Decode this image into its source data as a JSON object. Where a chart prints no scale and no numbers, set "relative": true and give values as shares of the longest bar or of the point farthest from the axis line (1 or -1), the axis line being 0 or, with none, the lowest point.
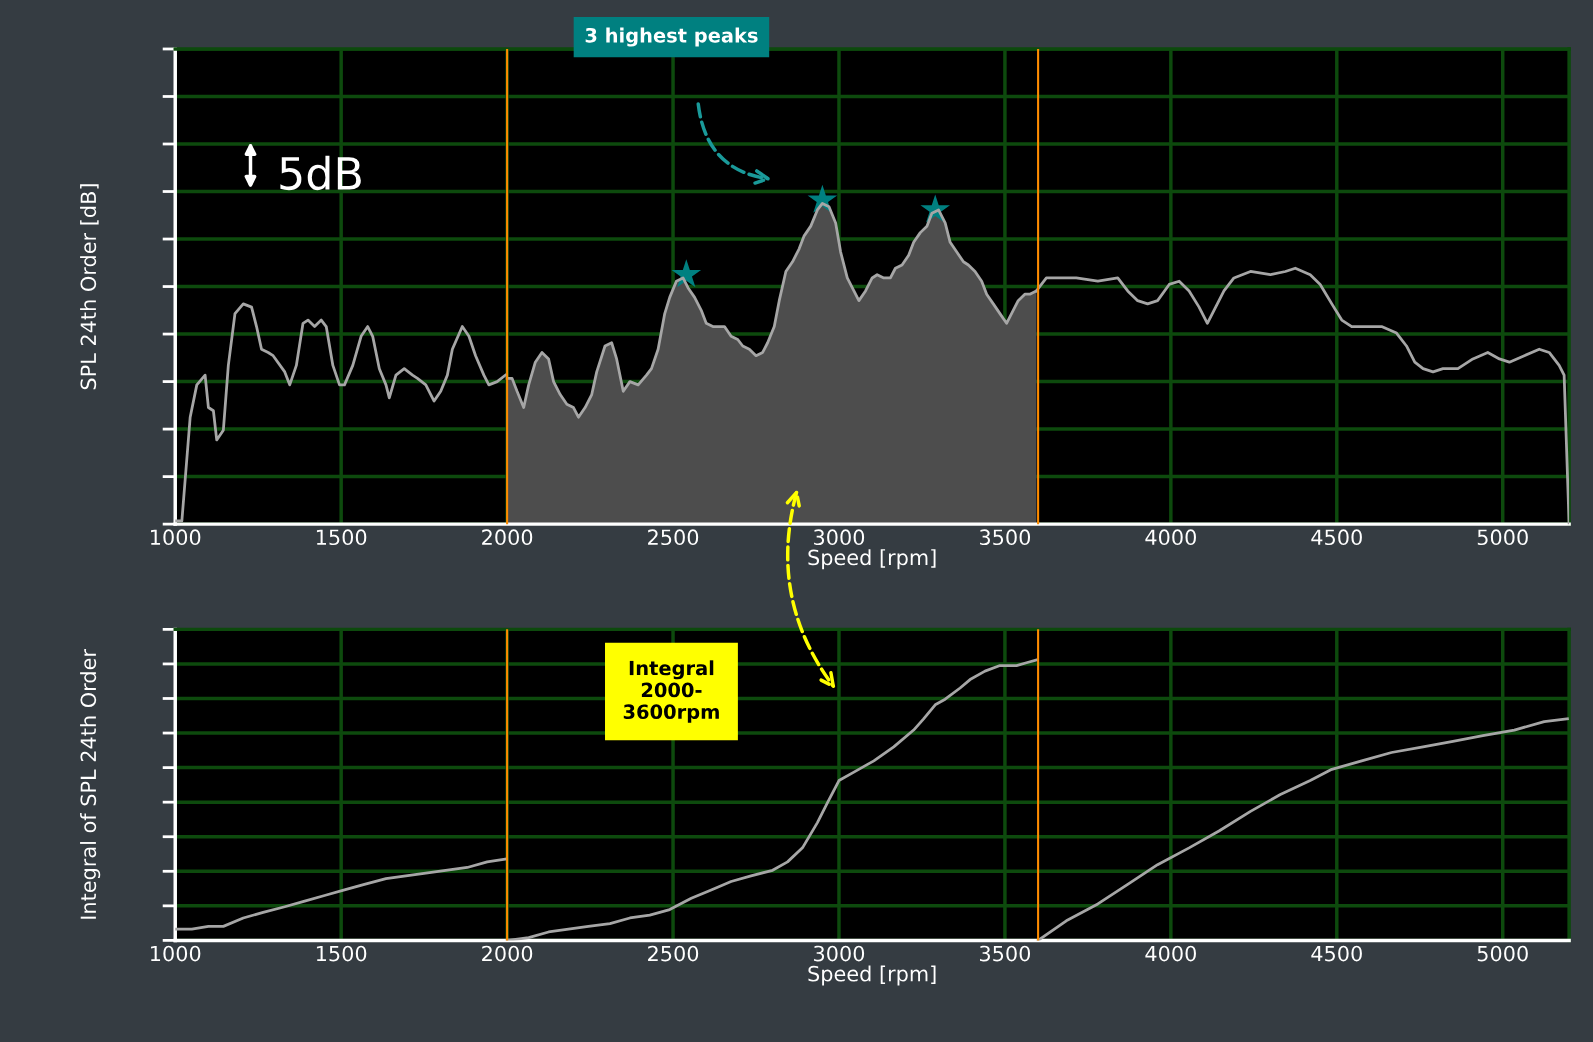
{
  "chart_data": [
    {
      "type": "line",
      "ylabel": "SPL 24th Order [dB]",
      "xlabel": "Speed [rpm]",
      "relative": true,
      "xlim": [
        1000,
        5200
      ],
      "xticks": [
        1000,
        1500,
        2000,
        2500,
        3000,
        3500,
        4000,
        4500,
        5000
      ],
      "grid": true,
      "legend": false,
      "tick_labels": "x",
      "marker": "none",
      "annotations": [
        "5dB",
        "3 highest peaks"
      ],
      "ref_lines": [
        {
          "axis": "x",
          "value": 2000,
          "label": null,
          "color": "#ff8c00"
        },
        {
          "axis": "x",
          "value": 3600,
          "label": null,
          "color": "#ff8c00"
        }
      ],
      "series": [
        {
          "type": "area",
          "color": "#4d4d4d",
          "x": [
            2000,
            2015,
            2030,
            2050,
            2065,
            2085,
            2105,
            2125,
            2140,
            2160,
            2180,
            2200,
            2215,
            2235,
            2255,
            2270,
            2295,
            2315,
            2330,
            2350,
            2370,
            2395,
            2420,
            2435,
            2455,
            2475,
            2490,
            2510,
            2530,
            2545,
            2565,
            2585,
            2600,
            2620,
            2640,
            2655,
            2675,
            2695,
            2710,
            2730,
            2750,
            2770,
            2785,
            2805,
            2820,
            2840,
            2860,
            2880,
            2895,
            2915,
            2935,
            2950,
            2970,
            2990,
            3005,
            3025,
            3045,
            3060,
            3080,
            3100,
            3115,
            3135,
            3155,
            3170,
            3190,
            3210,
            3225,
            3245,
            3265,
            3280,
            3300,
            3320,
            3335,
            3355,
            3375,
            3390,
            3410,
            3430,
            3445,
            3465,
            3485,
            3505,
            3520,
            3540,
            3560,
            3575,
            3595
          ],
          "values": [
            0.45,
            0.45,
            0.41,
            0.36,
            0.43,
            0.5,
            0.53,
            0.51,
            0.44,
            0.4,
            0.37,
            0.36,
            0.33,
            0.36,
            0.4,
            0.47,
            0.55,
            0.56,
            0.51,
            0.41,
            0.44,
            0.43,
            0.46,
            0.48,
            0.54,
            0.65,
            0.7,
            0.75,
            0.76,
            0.73,
            0.7,
            0.66,
            0.62,
            0.61,
            0.61,
            0.61,
            0.58,
            0.57,
            0.55,
            0.54,
            0.52,
            0.53,
            0.56,
            0.61,
            0.69,
            0.78,
            0.81,
            0.85,
            0.89,
            0.92,
            0.97,
            0.99,
            0.98,
            0.93,
            0.84,
            0.76,
            0.72,
            0.69,
            0.72,
            0.76,
            0.77,
            0.76,
            0.76,
            0.79,
            0.8,
            0.83,
            0.87,
            0.9,
            0.92,
            0.96,
            0.97,
            0.93,
            0.87,
            0.84,
            0.81,
            0.8,
            0.78,
            0.75,
            0.71,
            0.68,
            0.65,
            0.62,
            0.65,
            0.69,
            0.71,
            0.71,
            0.72
          ]
        },
        {
          "type": "line",
          "color": "#a6a6a6",
          "x": [
            1000,
            1020,
            1045,
            1065,
            1090,
            1100,
            1115,
            1125,
            1145,
            1160,
            1180,
            1205,
            1230,
            1245,
            1260,
            1280,
            1295,
            1330,
            1345,
            1365,
            1385,
            1400,
            1420,
            1440,
            1455,
            1475,
            1495,
            1510,
            1535,
            1560,
            1580,
            1595,
            1615,
            1635,
            1645,
            1665,
            1690,
            1715,
            1730,
            1755,
            1780,
            1800,
            1820,
            1835,
            1865,
            1885,
            1905,
            1930,
            1945,
            1970,
            1995
          ],
          "values": [
            0.01,
            0.01,
            0.33,
            0.43,
            0.46,
            0.36,
            0.35,
            0.26,
            0.29,
            0.49,
            0.65,
            0.68,
            0.67,
            0.61,
            0.54,
            0.53,
            0.52,
            0.47,
            0.43,
            0.49,
            0.62,
            0.63,
            0.61,
            0.63,
            0.61,
            0.49,
            0.43,
            0.43,
            0.49,
            0.58,
            0.61,
            0.58,
            0.48,
            0.43,
            0.39,
            0.46,
            0.48,
            0.46,
            0.45,
            0.43,
            0.38,
            0.41,
            0.46,
            0.54,
            0.61,
            0.58,
            0.52,
            0.46,
            0.43,
            0.44,
            0.46
          ]
        },
        {
          "type": "line",
          "color": "#a6a6a6",
          "x": [
            3595,
            3625,
            3655,
            3715,
            3780,
            3840,
            3870,
            3900,
            3930,
            3960,
            3995,
            4025,
            4055,
            4085,
            4110,
            4130,
            4160,
            4190,
            4240,
            4300,
            4345,
            4375,
            4420,
            4450,
            4485,
            4515,
            4545,
            4590,
            4635,
            4680,
            4710,
            4735,
            4760,
            4790,
            4820,
            4865,
            4910,
            4955,
            4990,
            5020,
            5065,
            5110,
            5140,
            5170,
            5185,
            5200
          ],
          "values": [
            0.72,
            0.76,
            0.76,
            0.76,
            0.75,
            0.76,
            0.72,
            0.69,
            0.68,
            0.69,
            0.74,
            0.75,
            0.72,
            0.67,
            0.62,
            0.66,
            0.72,
            0.76,
            0.78,
            0.77,
            0.78,
            0.79,
            0.77,
            0.74,
            0.68,
            0.63,
            0.61,
            0.61,
            0.61,
            0.59,
            0.55,
            0.5,
            0.48,
            0.47,
            0.48,
            0.48,
            0.51,
            0.53,
            0.51,
            0.5,
            0.52,
            0.54,
            0.53,
            0.49,
            0.46,
            0.0
          ]
        },
        {
          "type": "scatter",
          "marker": "star",
          "color": "#008080",
          "x": [
            2540,
            2950,
            3290
          ],
          "values": [
            0.77,
            1.0,
            0.97
          ]
        }
      ]
    },
    {
      "type": "line",
      "ylabel": "Integral of SPL 24th Order",
      "xlabel": "Speed [rpm]",
      "relative": true,
      "xlim": [
        1000,
        5200
      ],
      "xticks": [
        1000,
        1500,
        2000,
        2500,
        3000,
        3500,
        4000,
        4500,
        5000
      ],
      "grid": true,
      "legend": false,
      "tick_labels": "x",
      "marker": "none",
      "annotations": [
        "Integral\n2000-\n3600rpm"
      ],
      "ref_lines": [
        {
          "axis": "x",
          "value": 2000,
          "label": null,
          "color": "#ff8c00"
        },
        {
          "axis": "x",
          "value": 3600,
          "label": null,
          "color": "#ff8c00"
        }
      ],
      "series": [
        {
          "color": "#a6a6a6",
          "x": [
            1000,
            1050,
            1100,
            1145,
            1205,
            1265,
            1330,
            1390,
            1450,
            1510,
            1570,
            1635,
            1695,
            1755,
            1815,
            1880,
            1940,
            1995
          ],
          "values": [
            0.04,
            0.04,
            0.05,
            0.05,
            0.08,
            0.1,
            0.12,
            0.14,
            0.16,
            0.18,
            0.2,
            0.22,
            0.23,
            0.24,
            0.25,
            0.26,
            0.28,
            0.29
          ]
        },
        {
          "color": "#a6a6a6",
          "x": [
            2000,
            2065,
            2125,
            2185,
            2245,
            2310,
            2370,
            2430,
            2490,
            2555,
            2615,
            2675,
            2735,
            2800,
            2845,
            2890,
            2935,
            2965,
            3000,
            3045,
            3105,
            3165,
            3225,
            3255,
            3290,
            3320,
            3365,
            3395,
            3440,
            3485,
            3535,
            3565,
            3595
          ],
          "values": [
            0.0,
            0.01,
            0.03,
            0.04,
            0.05,
            0.06,
            0.08,
            0.09,
            0.11,
            0.15,
            0.18,
            0.21,
            0.23,
            0.25,
            0.28,
            0.33,
            0.42,
            0.49,
            0.57,
            0.6,
            0.64,
            0.69,
            0.75,
            0.79,
            0.84,
            0.86,
            0.9,
            0.93,
            0.96,
            0.98,
            0.98,
            0.99,
            1.0
          ]
        },
        {
          "color": "#a6a6a6",
          "x": [
            3600,
            3685,
            3780,
            3870,
            3960,
            4055,
            4145,
            4240,
            4330,
            4420,
            4485,
            4575,
            4665,
            4760,
            4850,
            4940,
            5035,
            5125,
            5195
          ],
          "values": [
            0.0,
            0.07,
            0.13,
            0.2,
            0.27,
            0.33,
            0.39,
            0.46,
            0.52,
            0.57,
            0.61,
            0.64,
            0.67,
            0.69,
            0.71,
            0.73,
            0.75,
            0.78,
            0.79
          ]
        }
      ]
    }
  ]
}
